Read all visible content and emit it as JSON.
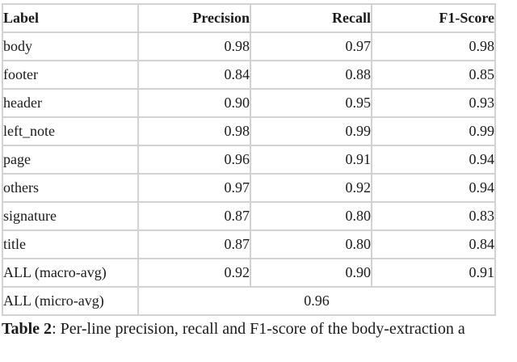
{
  "table": {
    "columns": [
      "Label",
      "Precision",
      "Recall",
      "F1-Score"
    ],
    "rows": [
      [
        "body",
        "0.98",
        "0.97",
        "0.98"
      ],
      [
        "footer",
        "0.84",
        "0.88",
        "0.85"
      ],
      [
        "header",
        "0.90",
        "0.95",
        "0.93"
      ],
      [
        "left_note",
        "0.98",
        "0.99",
        "0.99"
      ],
      [
        "page",
        "0.96",
        "0.91",
        "0.94"
      ],
      [
        "others",
        "0.97",
        "0.92",
        "0.94"
      ],
      [
        "signature",
        "0.87",
        "0.80",
        "0.83"
      ],
      [
        "title",
        "0.87",
        "0.80",
        "0.84"
      ],
      [
        "ALL (macro-avg)",
        "0.92",
        "0.90",
        "0.91"
      ]
    ],
    "micro_row": {
      "label": "ALL (micro-avg)",
      "value": "0.96"
    }
  },
  "caption": {
    "label": "Table 2",
    "text": ": Per-line precision, recall and F1-score of the body-extraction a"
  },
  "colors": {
    "border": "#d2d2d2",
    "text": "#1a1a1a",
    "background": "#ffffff"
  }
}
